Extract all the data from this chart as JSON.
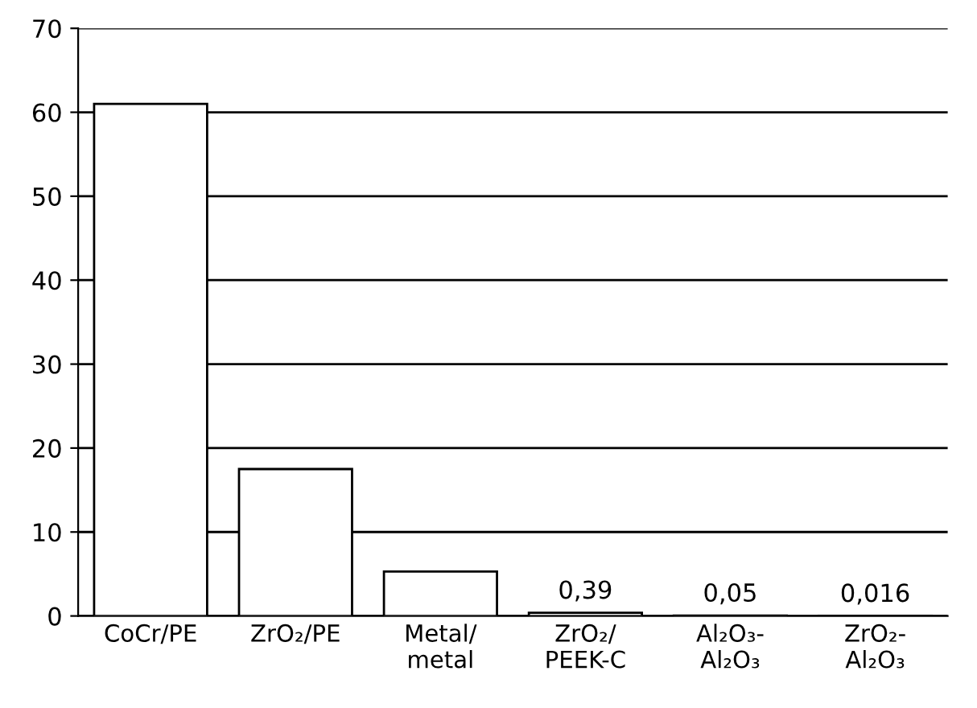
{
  "chart_data": {
    "type": "bar",
    "categories": [
      "CoCr/PE",
      "ZrO₂/PE",
      "Metal/\nmetal",
      "ZrO₂/\nPEEK-C",
      "Al₂O₃-\nAl₂O₃",
      "ZrO₂-\nAl₂O₃"
    ],
    "values": [
      61,
      17.5,
      5.3,
      0.39,
      0.05,
      0.016
    ],
    "value_labels": [
      null,
      null,
      null,
      "0,39",
      "0,05",
      "0,016"
    ],
    "color": "#ffffff",
    "ylim": [
      0,
      70
    ],
    "yticks": [
      0,
      10,
      20,
      30,
      40,
      50,
      60,
      70
    ],
    "grid": "y"
  }
}
